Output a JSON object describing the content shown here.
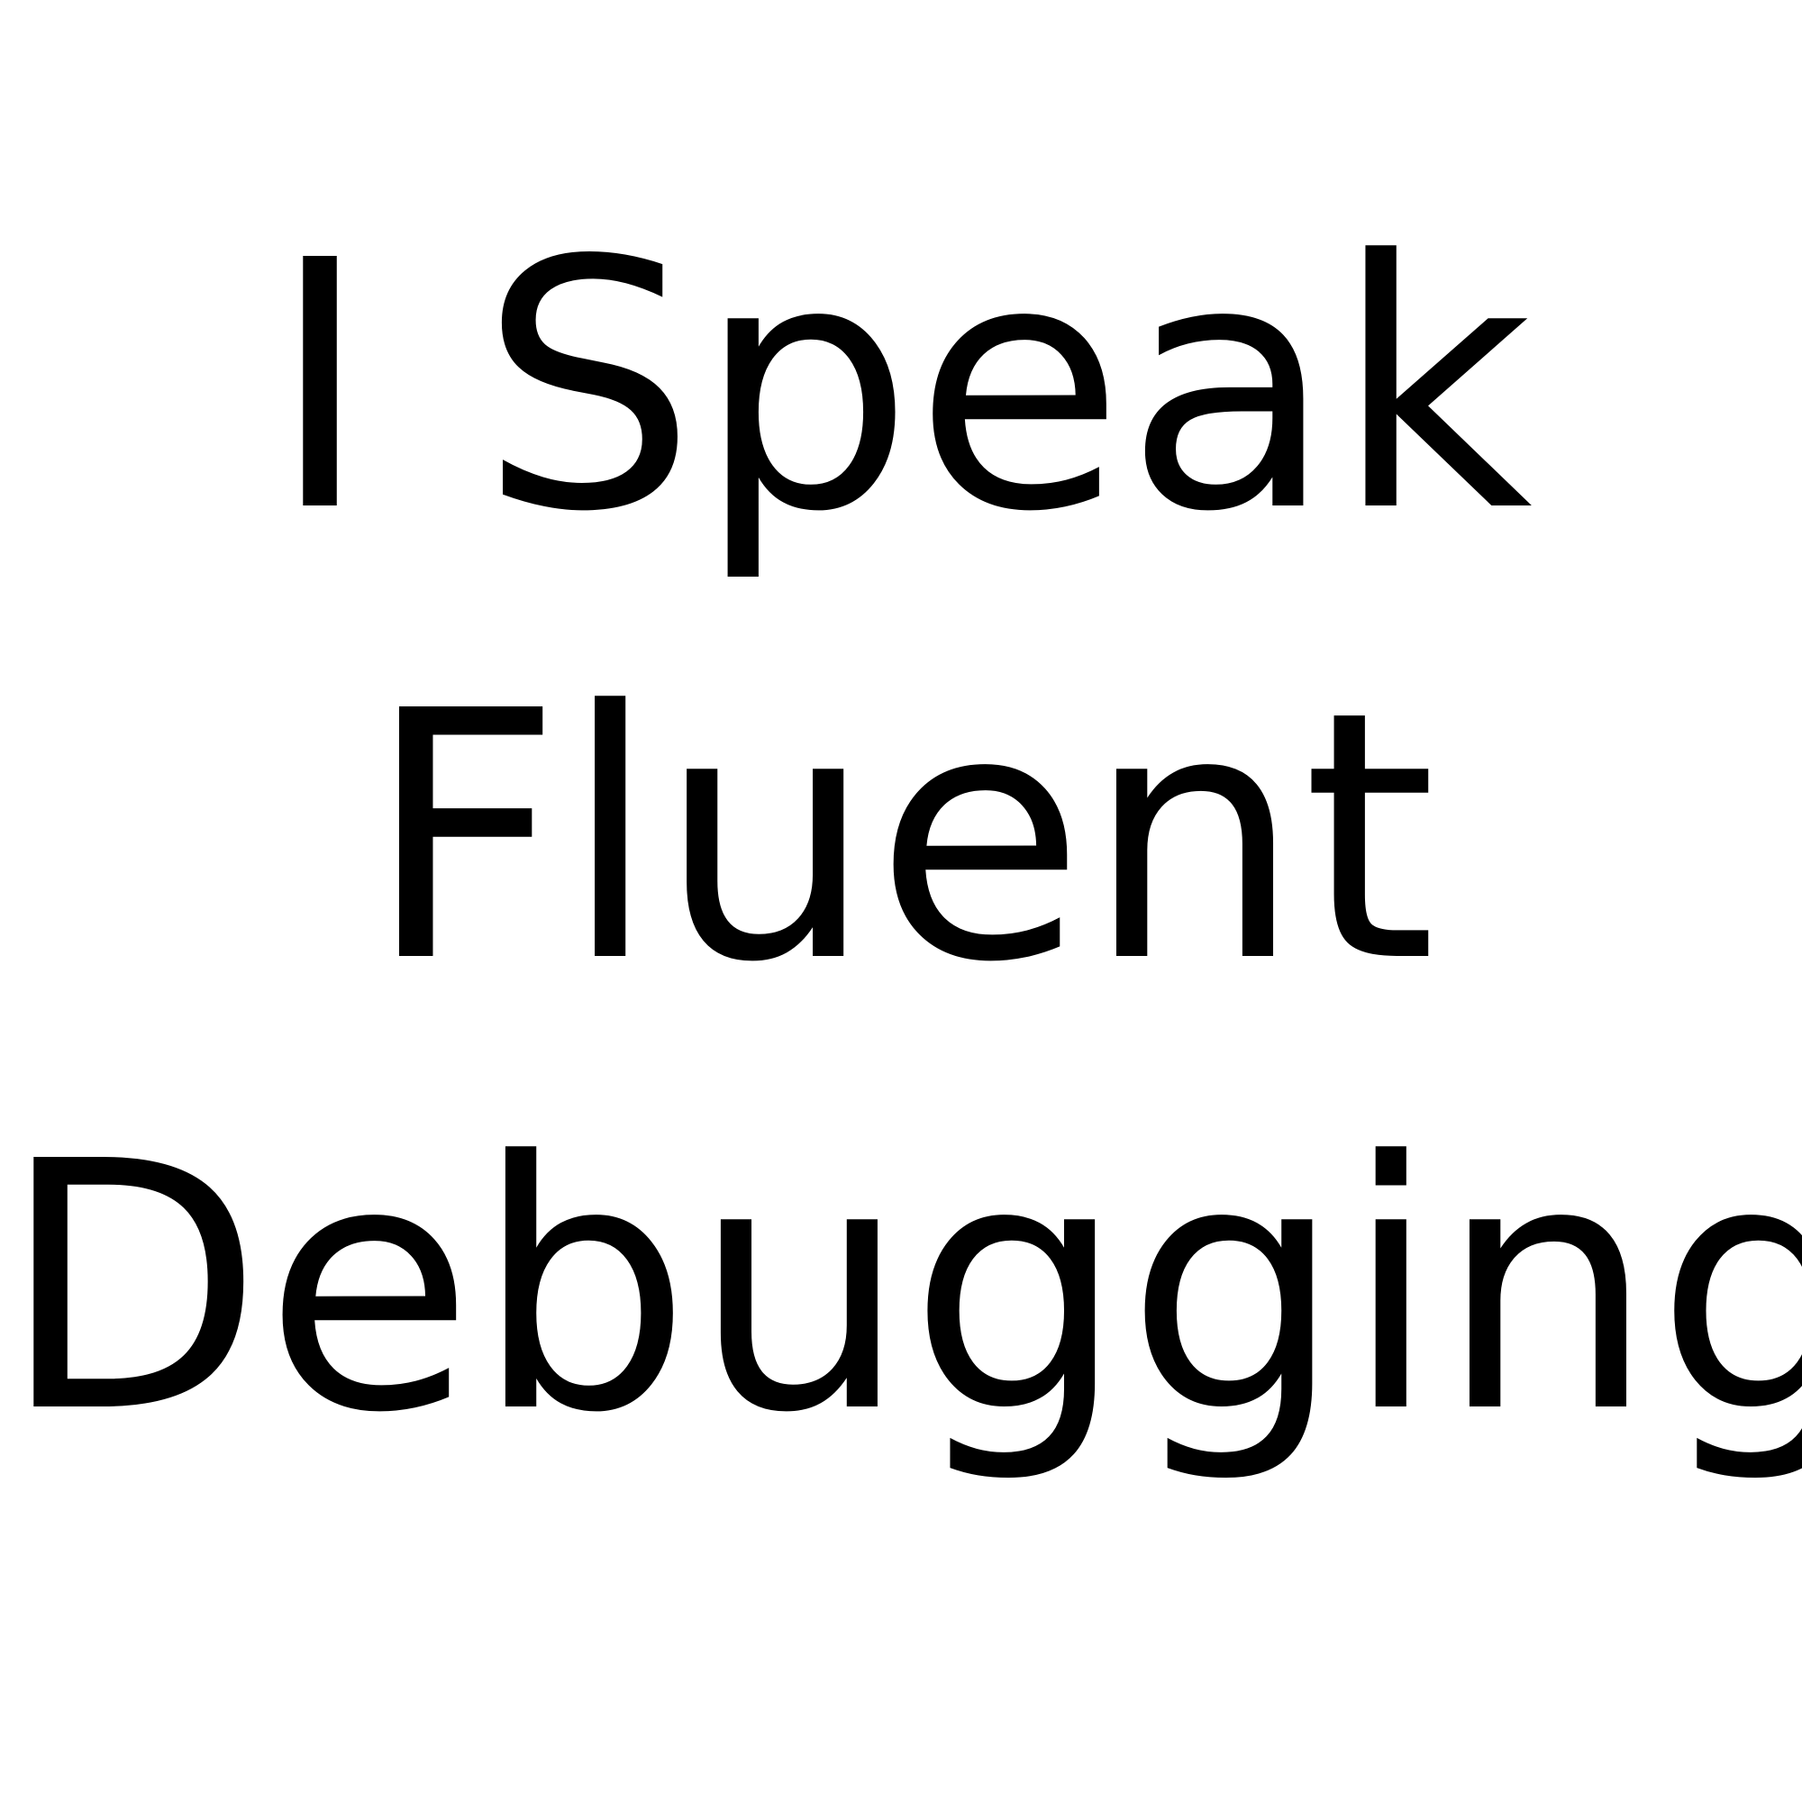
{
  "poster": {
    "lines": [
      "I Speak",
      "Fluent",
      "Debugging"
    ]
  },
  "colors": {
    "background": "#ffffff",
    "text": "#000000"
  }
}
